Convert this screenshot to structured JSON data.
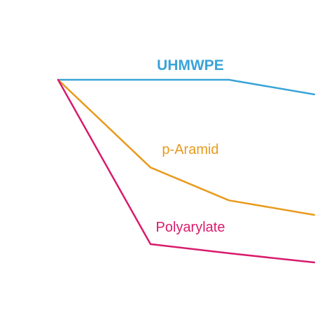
{
  "chart_data": {
    "type": "line",
    "title": "",
    "xlabel": "",
    "ylabel": "",
    "grid": false,
    "x": [
      0,
      1,
      2,
      3
    ],
    "ylim": [
      0,
      100
    ],
    "series": [
      {
        "name": "UHMWPE",
        "color": "#3aa3d8",
        "bold": true,
        "values": [
          100,
          100,
          100,
          92
        ]
      },
      {
        "name": "p-Aramid",
        "color": "#e89a1c",
        "bold": false,
        "values": [
          100,
          52,
          34,
          26
        ]
      },
      {
        "name": "Polyarylate",
        "color": "#d81b6c",
        "bold": false,
        "values": [
          100,
          10,
          5,
          0
        ]
      }
    ]
  }
}
